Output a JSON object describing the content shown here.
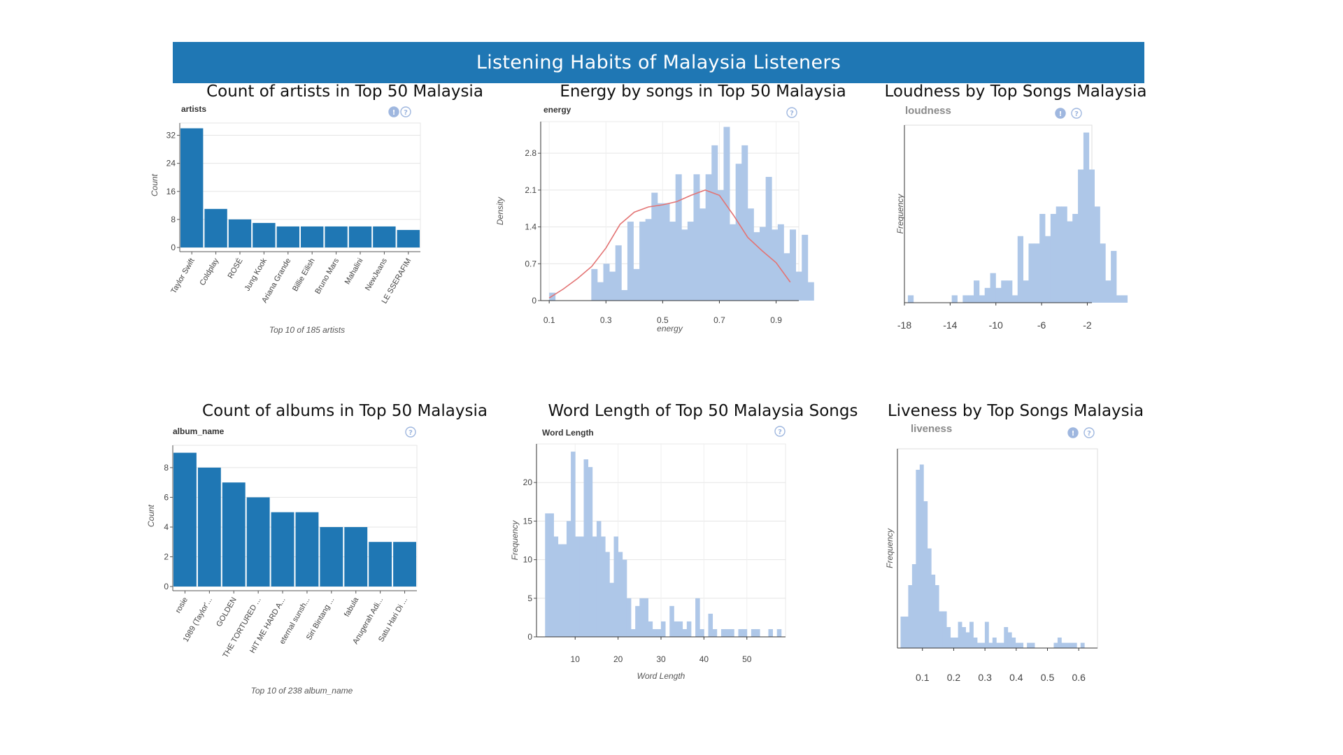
{
  "banner_title": "Listening Habits of Malaysia Listeners",
  "colors": {
    "banner": "#1f77b4",
    "bar": "#1f77b4",
    "hist": "#aec7e8",
    "kde": "#e37474",
    "icon": "#9fb7df"
  },
  "icons": [
    "info-icon",
    "help-icon"
  ],
  "chart_data": [
    {
      "type": "bar",
      "title": "Count of artists in Top 50 Malaysia",
      "subtitle": "artists",
      "xlabel": "Top 10 of 185 artists",
      "ylabel": "Count",
      "categories": [
        "Taylor Swift",
        "Coldplay",
        "ROSÉ",
        "Jung Kook",
        "Ariana Grande",
        "Billie Eilish",
        "Bruno Mars",
        "Mahalini",
        "NewJeans",
        "LE SSERAFIM"
      ],
      "values": [
        34,
        11,
        8,
        7,
        6,
        6,
        6,
        6,
        6,
        5
      ],
      "ylim": [
        0,
        35.5
      ],
      "yticks": [
        0,
        8,
        16,
        24,
        32
      ],
      "grid": true,
      "icons": [
        "info-icon",
        "help-icon"
      ]
    },
    {
      "type": "histogram",
      "title": "Energy by songs in Top 50 Malaysia",
      "subtitle": "energy",
      "xlabel": "energy",
      "ylabel": "Density",
      "x_start": 0.1,
      "bin_width": 0.0212,
      "values": [
        0.15,
        0,
        0,
        0,
        0,
        0,
        0,
        0.6,
        0.35,
        0.7,
        0.55,
        1.05,
        0.2,
        1.5,
        0.6,
        1.5,
        1.55,
        2.05,
        1.85,
        1.85,
        1.5,
        2.4,
        1.35,
        1.5,
        2.4,
        1.75,
        2.4,
        2.95,
        2.1,
        3.3,
        1.45,
        2.6,
        2.95,
        1.75,
        1.3,
        1.4,
        2.35,
        1.35,
        1.45,
        0.9,
        1.35,
        0.55,
        1.25,
        0.35
      ],
      "kde": [
        [
          0.1,
          0.05
        ],
        [
          0.15,
          0.22
        ],
        [
          0.2,
          0.42
        ],
        [
          0.25,
          0.65
        ],
        [
          0.3,
          1.0
        ],
        [
          0.35,
          1.45
        ],
        [
          0.4,
          1.68
        ],
        [
          0.45,
          1.78
        ],
        [
          0.5,
          1.82
        ],
        [
          0.55,
          1.88
        ],
        [
          0.6,
          2.0
        ],
        [
          0.65,
          2.1
        ],
        [
          0.7,
          2.0
        ],
        [
          0.75,
          1.62
        ],
        [
          0.8,
          1.2
        ],
        [
          0.85,
          0.95
        ],
        [
          0.9,
          0.72
        ],
        [
          0.95,
          0.35
        ]
      ],
      "xlim": [
        0.07,
        0.98
      ],
      "ylim": [
        0,
        3.4
      ],
      "xticks": [
        0.1,
        0.3,
        0.5,
        0.7,
        0.9
      ],
      "yticks": [
        0,
        0.7,
        1.4,
        2.1,
        2.8
      ],
      "grid": true,
      "icons": [
        "help-icon"
      ]
    },
    {
      "type": "histogram",
      "title": "Loudness by Top Songs Malaysia",
      "subtitle": "loudness",
      "xlabel": "",
      "ylabel": "Frequency",
      "x_start": -17.7,
      "bin_width": 0.48,
      "values": [
        1,
        0,
        0,
        0,
        0,
        0,
        0,
        0,
        1,
        0,
        1,
        1,
        3,
        1,
        2,
        4,
        2,
        3,
        3,
        1,
        9,
        3,
        8,
        8,
        12,
        9,
        12,
        13,
        13,
        11,
        12,
        18,
        23,
        18,
        13,
        8,
        3,
        7,
        1,
        1
      ],
      "xlim": [
        -18,
        -1.6
      ],
      "ylim": [
        0,
        24
      ],
      "xticks": [
        -18,
        -14,
        -10,
        -6,
        -2
      ],
      "grid": false,
      "icons": [
        "info-icon",
        "help-icon"
      ]
    },
    {
      "type": "bar",
      "title": "Count of albums in Top 50 Malaysia",
      "subtitle": "album_name",
      "xlabel": "Top 10 of 238 album_name",
      "ylabel": "Count",
      "categories": [
        "rosie",
        "1989 (Taylor'...",
        "GOLDEN",
        "THE TORTURED ...",
        "HIT ME HARD A...",
        "eternal sunsh...",
        "Siri Bintang ...",
        "fabula",
        "Anugerah Adi...",
        "Satu Hari Di ..."
      ],
      "values": [
        9,
        8,
        7,
        6,
        5,
        5,
        4,
        4,
        3,
        3
      ],
      "ylim": [
        0,
        9.5
      ],
      "yticks": [
        0,
        2,
        4,
        6,
        8
      ],
      "grid": true,
      "icons": [
        "help-icon"
      ]
    },
    {
      "type": "histogram",
      "title": "Word Length of Top 50 Malaysia Songs",
      "subtitle": "Word Length",
      "xlabel": "Word Length",
      "ylabel": "Frequency",
      "x_start": 3,
      "bin_width": 1,
      "values": [
        16,
        16,
        13,
        12,
        12,
        15,
        24,
        13,
        13,
        23,
        22,
        13,
        15,
        13,
        11,
        7,
        13,
        11,
        10,
        5,
        1,
        4,
        5,
        5,
        2,
        1,
        1,
        2,
        0,
        4,
        2,
        2,
        1,
        2,
        0,
        5,
        1,
        0,
        3,
        1,
        0,
        1,
        1,
        1,
        0,
        1,
        1,
        0,
        1,
        1,
        0,
        0,
        1,
        0,
        1
      ],
      "xlim": [
        1,
        59
      ],
      "ylim": [
        0,
        25
      ],
      "xticks": [
        10,
        20,
        30,
        40,
        50
      ],
      "yticks": [
        0,
        5,
        10,
        15,
        20
      ],
      "grid": true,
      "icons": [
        "help-icon"
      ]
    },
    {
      "type": "histogram",
      "title": "Liveness by Top Songs Malaysia",
      "subtitle": "liveness",
      "xlabel": "",
      "ylabel": "Frequency",
      "x_start": 0.03,
      "bin_width": 0.01225,
      "values": [
        6,
        6,
        12,
        16,
        34,
        35,
        28,
        19,
        14,
        12,
        7,
        7,
        4,
        2,
        2,
        5,
        4,
        3,
        5,
        2,
        1,
        1,
        5,
        1,
        2,
        1,
        1,
        4,
        3,
        2,
        1,
        1,
        0,
        1,
        1,
        0,
        0,
        0,
        0,
        0,
        1,
        2,
        1,
        1,
        1,
        1,
        0,
        1
      ],
      "xlim": [
        0.02,
        0.66
      ],
      "ylim": [
        0,
        38
      ],
      "xticks": [
        0.1,
        0.2,
        0.3,
        0.4,
        0.5,
        0.6
      ],
      "grid": false,
      "icons": [
        "info-icon",
        "help-icon"
      ]
    }
  ]
}
